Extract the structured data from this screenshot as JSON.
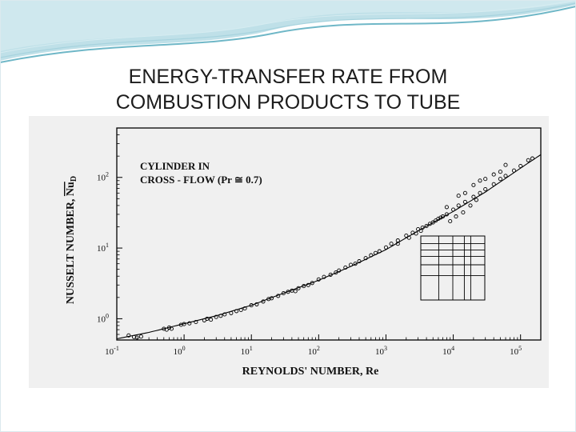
{
  "slide": {
    "title_line1": "ENERGY-TRANSFER RATE FROM",
    "title_line2": "COMBUSTION PRODUCTS TO TUBE",
    "accent_color": "#6fb7c7",
    "accent_light": "#bfe0e8"
  },
  "chart_data": {
    "type": "scatter",
    "title": "",
    "annotation_line1": "CYLINDER IN",
    "annotation_line2": "CROSS - FLOW (Pr ≅ 0.7)",
    "xlabel": "REYNOLDS' NUMBER, Re",
    "ylabel_text": "NUSSELT NUMBER, ",
    "ylabel_symbol": "Nu",
    "ylabel_subscript": "D",
    "x_scale": "log",
    "y_scale": "log",
    "xlim": [
      0.1,
      200000
    ],
    "ylim": [
      0.5,
      500
    ],
    "x_ticks": [
      {
        "value": 0.1,
        "base": "10",
        "exp": "-1"
      },
      {
        "value": 1,
        "base": "10",
        "exp": "0"
      },
      {
        "value": 10,
        "base": "10",
        "exp": "1"
      },
      {
        "value": 100,
        "base": "10",
        "exp": "2"
      },
      {
        "value": 1000,
        "base": "10",
        "exp": "3"
      },
      {
        "value": 10000,
        "base": "10",
        "exp": "4"
      },
      {
        "value": 100000,
        "base": "10",
        "exp": "5"
      }
    ],
    "y_ticks": [
      {
        "value": 1,
        "base": "10",
        "exp": "0"
      },
      {
        "value": 10,
        "base": "10",
        "exp": "1"
      },
      {
        "value": 100,
        "base": "10",
        "exp": "2"
      }
    ],
    "series": [
      {
        "marker": "open-circle",
        "points": [
          [
            0.15,
            0.58
          ],
          [
            0.18,
            0.55
          ],
          [
            0.2,
            0.54
          ],
          [
            0.23,
            0.56
          ],
          [
            0.5,
            0.72
          ],
          [
            0.55,
            0.7
          ],
          [
            0.6,
            0.75
          ],
          [
            0.65,
            0.72
          ],
          [
            0.9,
            0.82
          ],
          [
            1.0,
            0.84
          ],
          [
            1.2,
            0.86
          ],
          [
            1.5,
            0.9
          ],
          [
            2.0,
            0.95
          ],
          [
            2.2,
            1.0
          ],
          [
            2.5,
            0.97
          ],
          [
            3.0,
            1.06
          ],
          [
            3.5,
            1.1
          ],
          [
            4.0,
            1.15
          ],
          [
            5.0,
            1.2
          ],
          [
            6.0,
            1.28
          ],
          [
            7.0,
            1.33
          ],
          [
            8.0,
            1.4
          ],
          [
            10,
            1.55
          ],
          [
            12,
            1.6
          ],
          [
            15,
            1.75
          ],
          [
            18,
            1.9
          ],
          [
            20,
            1.95
          ],
          [
            25,
            2.1
          ],
          [
            30,
            2.3
          ],
          [
            35,
            2.4
          ],
          [
            40,
            2.5
          ],
          [
            45,
            2.45
          ],
          [
            50,
            2.7
          ],
          [
            60,
            2.9
          ],
          [
            70,
            3.0
          ],
          [
            80,
            3.2
          ],
          [
            100,
            3.6
          ],
          [
            120,
            3.9
          ],
          [
            150,
            4.2
          ],
          [
            180,
            4.5
          ],
          [
            200,
            4.8
          ],
          [
            250,
            5.3
          ],
          [
            300,
            5.8
          ],
          [
            350,
            6.0
          ],
          [
            400,
            6.5
          ],
          [
            500,
            7.2
          ],
          [
            600,
            7.9
          ],
          [
            700,
            8.5
          ],
          [
            800,
            9.0
          ],
          [
            1000,
            10.2
          ],
          [
            1200,
            11.5
          ],
          [
            1500,
            12.8
          ],
          [
            2000,
            15
          ],
          [
            2500,
            16.5
          ],
          [
            3000,
            18.5
          ],
          [
            3500,
            19.5
          ],
          [
            4000,
            20.5
          ],
          [
            5000,
            23
          ],
          [
            6000,
            26
          ],
          [
            7000,
            28
          ],
          [
            8000,
            30
          ],
          [
            10000,
            35
          ],
          [
            12000,
            40
          ],
          [
            15000,
            45
          ],
          [
            20000,
            53
          ],
          [
            25000,
            60
          ],
          [
            30000,
            68
          ],
          [
            40000,
            80
          ],
          [
            50000,
            95
          ],
          [
            60000,
            105
          ],
          [
            80000,
            125
          ],
          [
            100000,
            145
          ],
          [
            130000,
            175
          ],
          [
            150000,
            185
          ],
          [
            8000,
            38
          ],
          [
            12000,
            55
          ],
          [
            15000,
            60
          ],
          [
            20000,
            78
          ],
          [
            25000,
            90
          ],
          [
            30000,
            95
          ],
          [
            40000,
            110
          ],
          [
            50000,
            120
          ],
          [
            60000,
            150
          ],
          [
            9000,
            24
          ],
          [
            11000,
            28
          ],
          [
            14000,
            32
          ],
          [
            18000,
            40
          ],
          [
            22000,
            48
          ],
          [
            1500,
            11.5
          ],
          [
            2200,
            14
          ],
          [
            2800,
            16
          ],
          [
            3300,
            17.5
          ],
          [
            4500,
            22
          ],
          [
            5500,
            24.5
          ],
          [
            6500,
            27
          ]
        ]
      }
    ],
    "fit_curve": [
      [
        0.1,
        0.52
      ],
      [
        0.3,
        0.64
      ],
      [
        1,
        0.85
      ],
      [
        3,
        1.1
      ],
      [
        10,
        1.55
      ],
      [
        30,
        2.3
      ],
      [
        100,
        3.5
      ],
      [
        300,
        5.5
      ],
      [
        1000,
        9.5
      ],
      [
        3000,
        17.5
      ],
      [
        10000,
        33
      ],
      [
        30000,
        62
      ],
      [
        100000,
        135
      ],
      [
        200000,
        210
      ]
    ]
  }
}
